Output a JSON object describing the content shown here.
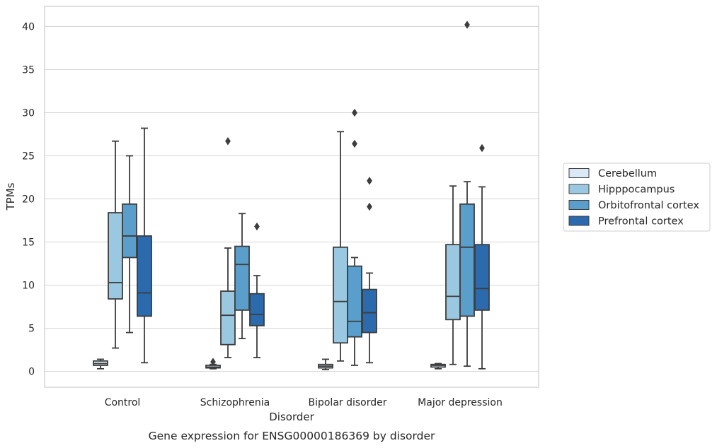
{
  "chart_data": {
    "type": "box",
    "title": "Gene expression for ENSG00000186369 by disorder",
    "xlabel": "Disorder",
    "ylabel": "TPMs",
    "ylim": [
      -1.8,
      42.3
    ],
    "yticks": [
      0,
      5,
      10,
      15,
      20,
      25,
      30,
      35,
      40
    ],
    "categories": [
      "Control",
      "Schizophrenia",
      "Bipolar disorder",
      "Major depression"
    ],
    "grid": "horizontal",
    "legend_position": "right",
    "series": [
      {
        "name": "Cerebellum",
        "color": "#dbe9f6",
        "boxes": [
          {
            "whisker_low": 0.3,
            "q1": 0.7,
            "median": 0.9,
            "q3": 1.2,
            "whisker_high": 1.4,
            "outliers": []
          },
          {
            "whisker_low": 0.3,
            "q1": 0.4,
            "median": 0.5,
            "q3": 0.7,
            "whisker_high": 0.8,
            "outliers": [
              1.1
            ]
          },
          {
            "whisker_low": 0.2,
            "q1": 0.4,
            "median": 0.6,
            "q3": 0.8,
            "whisker_high": 1.4,
            "outliers": []
          },
          {
            "whisker_low": 0.3,
            "q1": 0.5,
            "median": 0.7,
            "q3": 0.8,
            "whisker_high": 0.9,
            "outliers": []
          }
        ]
      },
      {
        "name": "Hipppocampus",
        "color": "#9ac8e0",
        "boxes": [
          {
            "whisker_low": 2.7,
            "q1": 8.4,
            "median": 10.3,
            "q3": 18.4,
            "whisker_high": 26.7,
            "outliers": []
          },
          {
            "whisker_low": 1.6,
            "q1": 3.1,
            "median": 6.5,
            "q3": 9.3,
            "whisker_high": 14.3,
            "outliers": [
              26.7
            ]
          },
          {
            "whisker_low": 1.2,
            "q1": 3.3,
            "median": 8.1,
            "q3": 14.4,
            "whisker_high": 27.8,
            "outliers": []
          },
          {
            "whisker_low": 0.8,
            "q1": 6.0,
            "median": 8.7,
            "q3": 14.7,
            "whisker_high": 21.5,
            "outliers": []
          }
        ]
      },
      {
        "name": "Orbitofrontal cortex",
        "color": "#5a9fcb",
        "boxes": [
          {
            "whisker_low": 4.5,
            "q1": 13.2,
            "median": 15.7,
            "q3": 19.4,
            "whisker_high": 25.0,
            "outliers": []
          },
          {
            "whisker_low": 3.8,
            "q1": 7.1,
            "median": 12.4,
            "q3": 14.5,
            "whisker_high": 18.3,
            "outliers": []
          },
          {
            "whisker_low": 0.7,
            "q1": 4.0,
            "median": 5.8,
            "q3": 12.2,
            "whisker_high": 13.2,
            "outliers": [
              26.4,
              30.0
            ]
          },
          {
            "whisker_low": 0.6,
            "q1": 6.4,
            "median": 14.4,
            "q3": 19.4,
            "whisker_high": 22.0,
            "outliers": [
              40.2
            ]
          }
        ]
      },
      {
        "name": "Prefrontal cortex",
        "color": "#2a6aad",
        "boxes": [
          {
            "whisker_low": 1.0,
            "q1": 6.4,
            "median": 9.1,
            "q3": 15.7,
            "whisker_high": 28.2,
            "outliers": []
          },
          {
            "whisker_low": 1.6,
            "q1": 5.3,
            "median": 6.6,
            "q3": 9.0,
            "whisker_high": 11.1,
            "outliers": [
              16.8
            ]
          },
          {
            "whisker_low": 1.0,
            "q1": 4.5,
            "median": 6.8,
            "q3": 9.5,
            "whisker_high": 11.4,
            "outliers": [
              19.1,
              22.1
            ]
          },
          {
            "whisker_low": 0.3,
            "q1": 7.1,
            "median": 9.6,
            "q3": 14.7,
            "whisker_high": 21.4,
            "outliers": [
              25.9
            ]
          }
        ]
      }
    ]
  }
}
